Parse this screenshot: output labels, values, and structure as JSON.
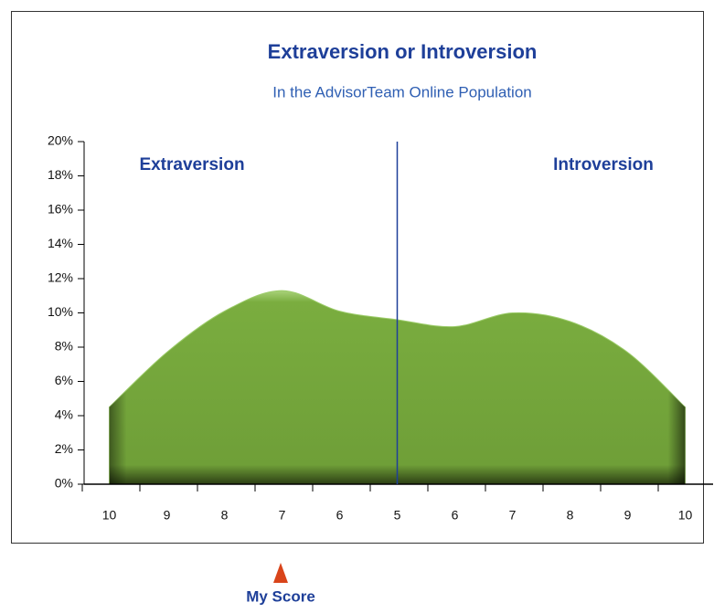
{
  "chart_data": {
    "type": "area",
    "title": "Extraversion or Introversion",
    "subtitle": "In the AdvisorTeam Online Population",
    "left_label": "Extraversion",
    "right_label": "Introversion",
    "marker_label": "My Score",
    "categories": [
      "10",
      "9",
      "8",
      "7",
      "6",
      "5",
      "6",
      "7",
      "8",
      "9",
      "10"
    ],
    "values": [
      4.5,
      7.7,
      10.1,
      11.3,
      10.1,
      9.6,
      9.2,
      10.0,
      9.5,
      7.7,
      4.5
    ],
    "color": "#7aad3f",
    "ylim": [
      0,
      20
    ],
    "yticks": [
      {
        "value": 0,
        "label": "0%"
      },
      {
        "value": 2,
        "label": "2%"
      },
      {
        "value": 4,
        "label": "4%"
      },
      {
        "value": 6,
        "label": "6%"
      },
      {
        "value": 8,
        "label": "8%"
      },
      {
        "value": 10,
        "label": "10%"
      },
      {
        "value": 12,
        "label": "12%"
      },
      {
        "value": 14,
        "label": "14%"
      },
      {
        "value": 16,
        "label": "16%"
      },
      {
        "value": 18,
        "label": "18%"
      },
      {
        "value": 20,
        "label": "20%"
      }
    ]
  }
}
